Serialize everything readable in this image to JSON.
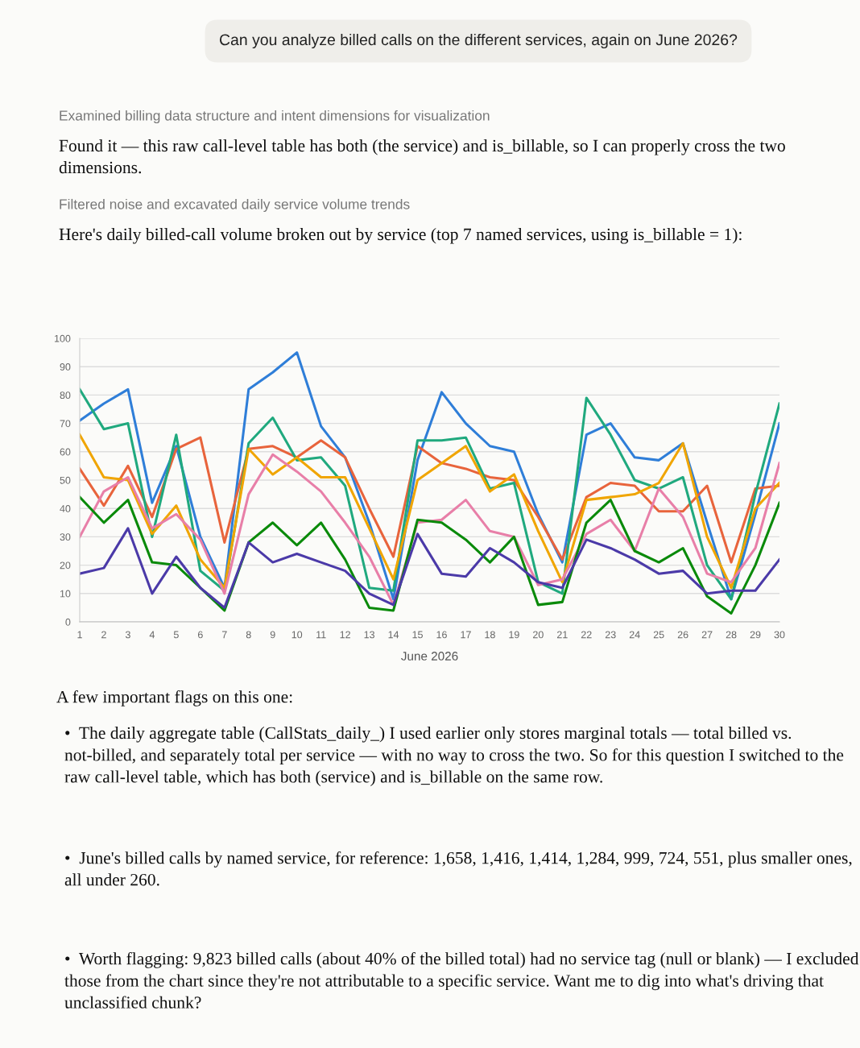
{
  "chart_data": {
    "type": "line",
    "title": "Can you analyze billed calls on the different services, again on June 2026?",
    "subtitle": "Here's daily billed-call volume broken out by service (top 7 named services, using is_billable = 1):",
    "xlabel": "June 2026",
    "x": [
      1,
      2,
      3,
      4,
      5,
      6,
      7,
      8,
      9,
      10,
      11,
      12,
      13,
      14,
      15,
      16,
      17,
      18,
      19,
      20,
      21,
      22,
      23,
      24,
      25,
      26,
      27,
      28,
      29,
      30
    ],
    "xlim": [
      1,
      30
    ],
    "xticks": [
      1,
      2,
      3,
      4,
      5,
      6,
      7,
      8,
      9,
      10,
      11,
      12,
      13,
      14,
      15,
      16,
      17,
      18,
      19,
      20,
      21,
      22,
      23,
      24,
      25,
      26,
      27,
      28,
      29,
      30
    ],
    "ylim": [
      0,
      100
    ],
    "yticks": [
      0,
      10,
      20,
      30,
      40,
      50,
      60,
      70,
      80,
      90,
      100
    ],
    "grid": "y",
    "marker": "none",
    "line_style": "solid",
    "series": [
      {
        "color": "#2f7ed8",
        "values": [
          71,
          77,
          82,
          42,
          62,
          30,
          12,
          82,
          88,
          95,
          69,
          58,
          35,
          8,
          57,
          81,
          70,
          62,
          60,
          38,
          21,
          66,
          70,
          58,
          57,
          63,
          35,
          8,
          38,
          70
        ]
      },
      {
        "color": "#e8643c",
        "values": [
          54,
          41,
          55,
          37,
          61,
          65,
          28,
          61,
          62,
          58,
          64,
          58,
          40,
          23,
          62,
          56,
          54,
          51,
          50,
          37,
          22,
          44,
          49,
          48,
          39,
          39,
          48,
          21,
          47,
          48
        ]
      },
      {
        "color": "#20a97e",
        "values": [
          82,
          68,
          70,
          30,
          66,
          18,
          11,
          63,
          72,
          57,
          58,
          48,
          12,
          11,
          64,
          64,
          65,
          47,
          49,
          14,
          10,
          79,
          66,
          50,
          47,
          51,
          20,
          8,
          45,
          77
        ]
      },
      {
        "color": "#f0a500",
        "values": [
          66,
          51,
          50,
          31,
          41,
          22,
          12,
          61,
          52,
          58,
          51,
          51,
          33,
          15,
          50,
          56,
          62,
          46,
          52,
          32,
          14,
          43,
          44,
          45,
          49,
          63,
          30,
          12,
          40,
          49
        ]
      },
      {
        "color": "#e87fa8",
        "values": [
          30,
          46,
          51,
          33,
          38,
          29,
          10,
          45,
          59,
          53,
          46,
          35,
          23,
          6,
          35,
          36,
          43,
          32,
          30,
          13,
          15,
          31,
          36,
          25,
          47,
          37,
          17,
          14,
          26,
          56
        ]
      },
      {
        "color": "#0a8a0a",
        "values": [
          44,
          35,
          43,
          21,
          20,
          12,
          4,
          28,
          35,
          27,
          35,
          22,
          5,
          4,
          36,
          35,
          29,
          21,
          30,
          6,
          7,
          35,
          43,
          25,
          21,
          26,
          9,
          3,
          20,
          42
        ]
      },
      {
        "color": "#4b3aa8",
        "values": [
          17,
          19,
          33,
          10,
          23,
          12,
          5,
          28,
          21,
          24,
          21,
          18,
          10,
          6,
          31,
          17,
          16,
          26,
          21,
          14,
          12,
          29,
          26,
          22,
          17,
          18,
          10,
          11,
          11,
          22
        ]
      }
    ],
    "annotations": [
      "Examined billing data structure and intent dimensions for visualization",
      "Found it — this raw call-level table has both (the service) and is_billable, so I can properly cross the two dimensions.",
      "Filtered noise and excavated daily service volume trends",
      "A few important flags on this one:",
      "•  The daily aggregate table (CallStats_daily_) I used earlier only stores marginal totals — total billed vs. not-billed, and separately total per service — with no way to cross the two. So for this question I switched to the raw call-level table, which has both (service) and is_billable on the same row.",
      "•  June's billed calls by named service, for reference: 1,658, 1,416, 1,414, 1,284, 999, 724, 551, plus smaller ones, all under 260.",
      "•  Worth flagging: 9,823 billed calls (about 40% of the billed total) had no service tag (null or blank) — I excluded those from the chart since they're not attributable to a specific service. Want me to dig into what's driving that unclassified chunk?"
    ]
  }
}
